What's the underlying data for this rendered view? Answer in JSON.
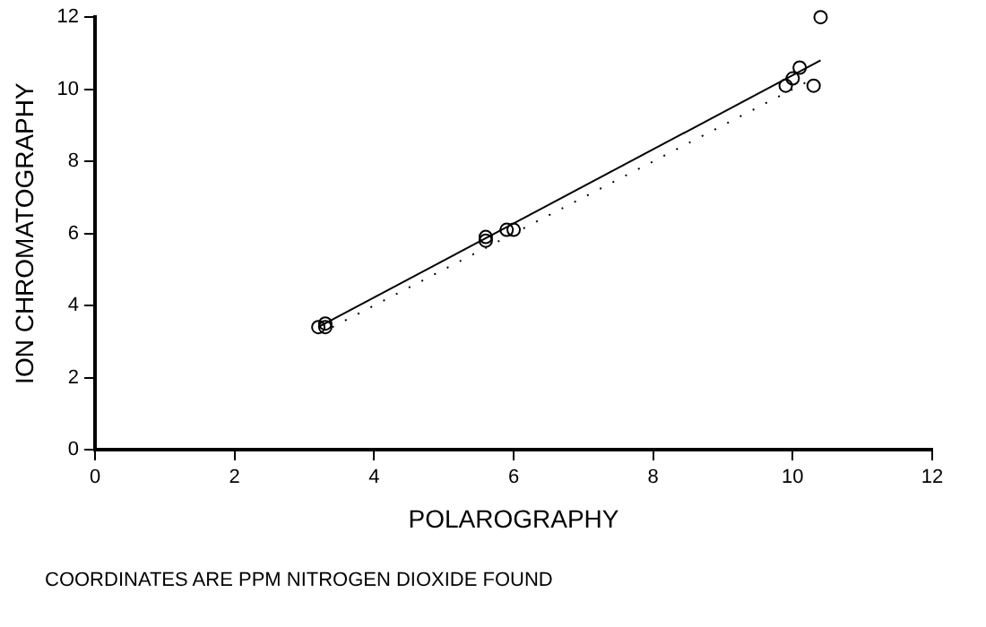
{
  "chart_data": {
    "type": "scatter",
    "xlabel": "POLAROGRAPHY",
    "ylabel": "ION CHROMATOGRAPHY",
    "xlim": [
      0,
      12
    ],
    "ylim": [
      0,
      12
    ],
    "xticks": [
      0,
      2,
      4,
      6,
      8,
      10,
      12
    ],
    "yticks": [
      0,
      2,
      4,
      6,
      8,
      10,
      12
    ],
    "grid": false,
    "legend": false,
    "marker": "circle",
    "series": [
      {
        "color": "#000000",
        "x": [
          3.2,
          3.3,
          3.3,
          5.6,
          5.6,
          5.9,
          6.0,
          9.9,
          10.0,
          10.1,
          10.3,
          10.4
        ],
        "values": [
          3.4,
          3.5,
          3.4,
          5.9,
          5.8,
          6.1,
          6.1,
          10.1,
          10.3,
          10.6,
          10.1,
          12.0
        ]
      },
      {
        "type": "line",
        "color": "#000000",
        "line_style": "solid",
        "marker": "none",
        "x": [
          3.2,
          10.4
        ],
        "values": [
          3.4,
          10.8
        ]
      },
      {
        "type": "line",
        "color": "#000000",
        "line_style": "dotted",
        "marker": "none",
        "x": [
          3.4,
          10.2
        ],
        "values": [
          3.4,
          10.2
        ]
      }
    ],
    "annotations": [
      "COORDINATES ARE PPM NITROGEN DIOXIDE FOUND"
    ]
  }
}
